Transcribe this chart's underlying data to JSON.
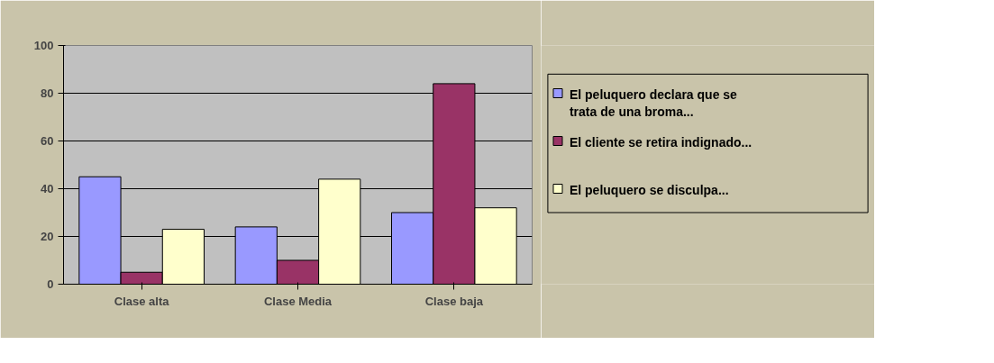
{
  "chart_data": {
    "type": "bar",
    "categories": [
      "Clase alta",
      "Clase Media",
      "Clase baja"
    ],
    "series": [
      {
        "name": "El peluquero declara que se trata de una broma...",
        "color": "#9999ff",
        "values": [
          45,
          24,
          30
        ]
      },
      {
        "name": "El cliente se retira indignado...",
        "color": "#993366",
        "values": [
          5,
          10,
          84
        ]
      },
      {
        "name": "El peluquero se disculpa...",
        "color": "#ffffcc",
        "values": [
          23,
          44,
          32
        ]
      }
    ],
    "ylim": [
      0,
      100
    ],
    "yticks": [
      0,
      20,
      40,
      60,
      80,
      100
    ],
    "grid": "y",
    "legend": "right"
  }
}
